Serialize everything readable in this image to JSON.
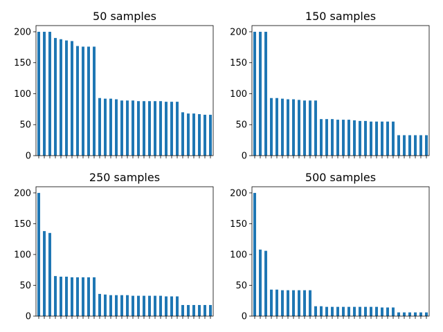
{
  "chart_data": [
    {
      "type": "bar",
      "title": "50 samples",
      "ylim": [
        0,
        210
      ],
      "yticks": [
        0,
        50,
        100,
        150,
        200
      ],
      "grid": false,
      "color": "#1f77b4",
      "values": [
        200,
        200,
        200,
        190,
        188,
        186,
        185,
        177,
        176,
        176,
        176,
        93,
        92,
        92,
        91,
        89,
        89,
        89,
        88,
        88,
        88,
        88,
        88,
        87,
        87,
        87,
        70,
        68,
        68,
        67,
        66,
        66
      ]
    },
    {
      "type": "bar",
      "title": "150 samples",
      "ylim": [
        0,
        210
      ],
      "yticks": [
        0,
        50,
        100,
        150,
        200
      ],
      "grid": false,
      "color": "#1f77b4",
      "values": [
        200,
        200,
        200,
        93,
        93,
        92,
        91,
        91,
        90,
        89,
        89,
        89,
        59,
        59,
        59,
        58,
        58,
        58,
        57,
        56,
        56,
        55,
        55,
        55,
        55,
        55,
        33,
        33,
        33,
        33,
        33,
        33
      ]
    },
    {
      "type": "bar",
      "title": "250 samples",
      "ylim": [
        0,
        210
      ],
      "yticks": [
        0,
        50,
        100,
        150,
        200
      ],
      "grid": false,
      "color": "#1f77b4",
      "values": [
        200,
        138,
        135,
        65,
        64,
        64,
        63,
        63,
        63,
        63,
        63,
        36,
        35,
        34,
        34,
        34,
        34,
        33,
        33,
        33,
        33,
        33,
        33,
        32,
        32,
        32,
        18,
        18,
        18,
        18,
        18,
        18
      ]
    },
    {
      "type": "bar",
      "title": "500 samples",
      "ylim": [
        0,
        210
      ],
      "yticks": [
        0,
        50,
        100,
        150,
        200
      ],
      "grid": false,
      "color": "#1f77b4",
      "values": [
        200,
        108,
        106,
        43,
        43,
        42,
        42,
        42,
        42,
        42,
        42,
        16,
        16,
        15,
        15,
        15,
        15,
        15,
        15,
        15,
        15,
        15,
        15,
        14,
        14,
        14,
        6,
        6,
        6,
        6,
        6,
        6
      ]
    }
  ]
}
